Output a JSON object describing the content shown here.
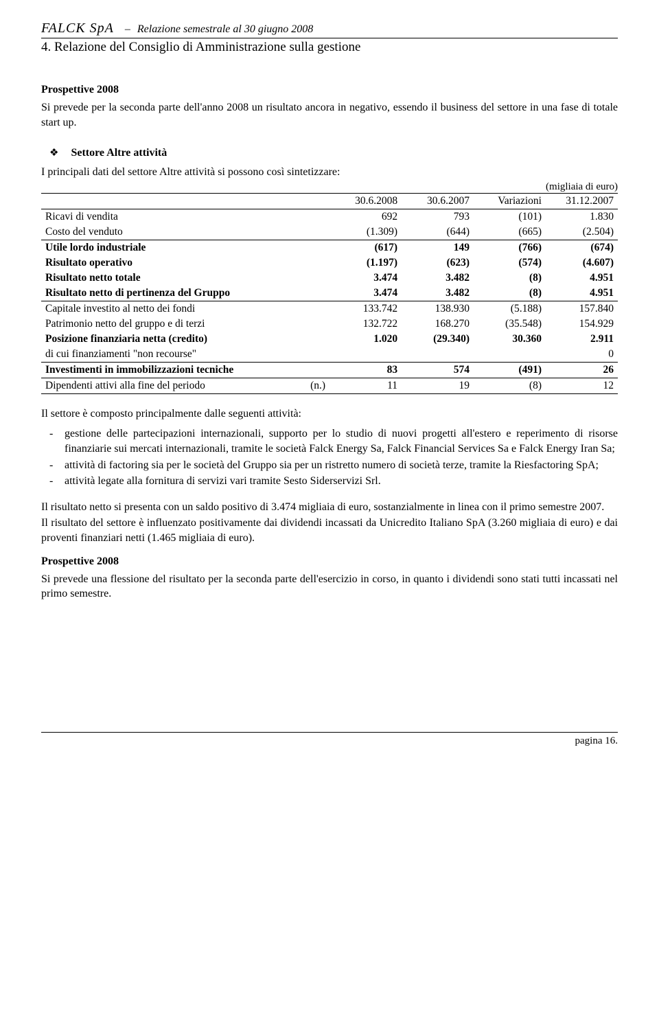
{
  "header": {
    "company": "FALCK SpA",
    "separator": "–",
    "report_title": "Relazione semestrale al 30 giugno 2008"
  },
  "section_title": "4. Relazione del Consiglio di Amministrazione sulla gestione",
  "prospettive_top": {
    "heading": "Prospettive 2008",
    "text": "Si prevede per la seconda parte dell'anno 2008 un risultato ancora in negativo, essendo il business del settore in una fase di totale start up."
  },
  "settore": {
    "bullet": "❖",
    "title": "Settore Altre attività",
    "intro": "I principali dati del settore Altre attività si possono così sintetizzare:",
    "unit_note": "(migliaia di euro)"
  },
  "table": {
    "columns": [
      "",
      "30.6.2008",
      "30.6.2007",
      "Variazioni",
      "31.12.2007"
    ],
    "rows": [
      {
        "label": "Ricavi di vendita",
        "v": [
          "692",
          "793",
          "(101)",
          "1.830"
        ],
        "bold": false,
        "sep": false
      },
      {
        "label": "Costo del venduto",
        "v": [
          "(1.309)",
          "(644)",
          "(665)",
          "(2.504)"
        ],
        "bold": false,
        "sep": false
      },
      {
        "label": "Utile lordo industriale",
        "v": [
          "(617)",
          "149",
          "(766)",
          "(674)"
        ],
        "bold": true,
        "sep": true
      },
      {
        "label": "Risultato operativo",
        "v": [
          "(1.197)",
          "(623)",
          "(574)",
          "(4.607)"
        ],
        "bold": true,
        "sep": false
      },
      {
        "label": "Risultato netto totale",
        "v": [
          "3.474",
          "3.482",
          "(8)",
          "4.951"
        ],
        "bold": true,
        "sep": false
      },
      {
        "label": "Risultato netto di pertinenza del Gruppo",
        "v": [
          "3.474",
          "3.482",
          "(8)",
          "4.951"
        ],
        "bold": true,
        "sep": false
      },
      {
        "label": "Capitale investito al netto dei fondi",
        "v": [
          "133.742",
          "138.930",
          "(5.188)",
          "157.840"
        ],
        "bold": false,
        "sep": true
      },
      {
        "label": "Patrimonio netto del gruppo e di terzi",
        "v": [
          "132.722",
          "168.270",
          "(35.548)",
          "154.929"
        ],
        "bold": false,
        "sep": false
      },
      {
        "label": "Posizione finanziaria netta (credito)",
        "v": [
          "1.020",
          "(29.340)",
          "30.360",
          "2.911"
        ],
        "bold": true,
        "sep": false
      },
      {
        "label": "di cui finanziamenti \"non recourse\"",
        "v": [
          "",
          "",
          "",
          "0"
        ],
        "bold": false,
        "sep": false
      },
      {
        "label": "Investimenti in immobilizzazioni tecniche",
        "v": [
          "83",
          "574",
          "(491)",
          "26"
        ],
        "bold": true,
        "sep": true
      },
      {
        "label": "Dipendenti attivi alla fine del periodo",
        "n": "(n.)",
        "v": [
          "11",
          "19",
          "(8)",
          "12"
        ],
        "bold": false,
        "sep": true,
        "sep_after": true
      }
    ]
  },
  "settore_text": {
    "intro2": "Il settore è composto principalmente dalle seguenti attività:",
    "items": [
      "gestione delle partecipazioni internazionali, supporto per lo studio di nuovi progetti all'estero e reperimento di risorse finanziarie sui mercati internazionali, tramite le società Falck Energy Sa, Falck Financial Services Sa e Falck Energy Iran Sa;",
      "attività di factoring sia per le società del Gruppo sia per un ristretto numero di società terze, tramite la Riesfactoring SpA;",
      "attività legate alla fornitura di servizi vari tramite Sesto Siderservizi Srl."
    ],
    "para1": "Il risultato netto si presenta con un saldo positivo di 3.474 migliaia di euro, sostanzialmente in linea con il primo semestre 2007.",
    "para2": "Il risultato del settore è influenzato positivamente dai dividendi incassati da Unicredito Italiano SpA (3.260 migliaia di euro) e dai proventi finanziari netti (1.465 migliaia di euro)."
  },
  "prospettive_bottom": {
    "heading": "Prospettive 2008",
    "text": "Si prevede una flessione del risultato per la seconda parte dell'esercizio in corso, in quanto i dividendi sono stati tutti incassati nel primo semestre."
  },
  "footer": {
    "page_label": "pagina 16."
  }
}
